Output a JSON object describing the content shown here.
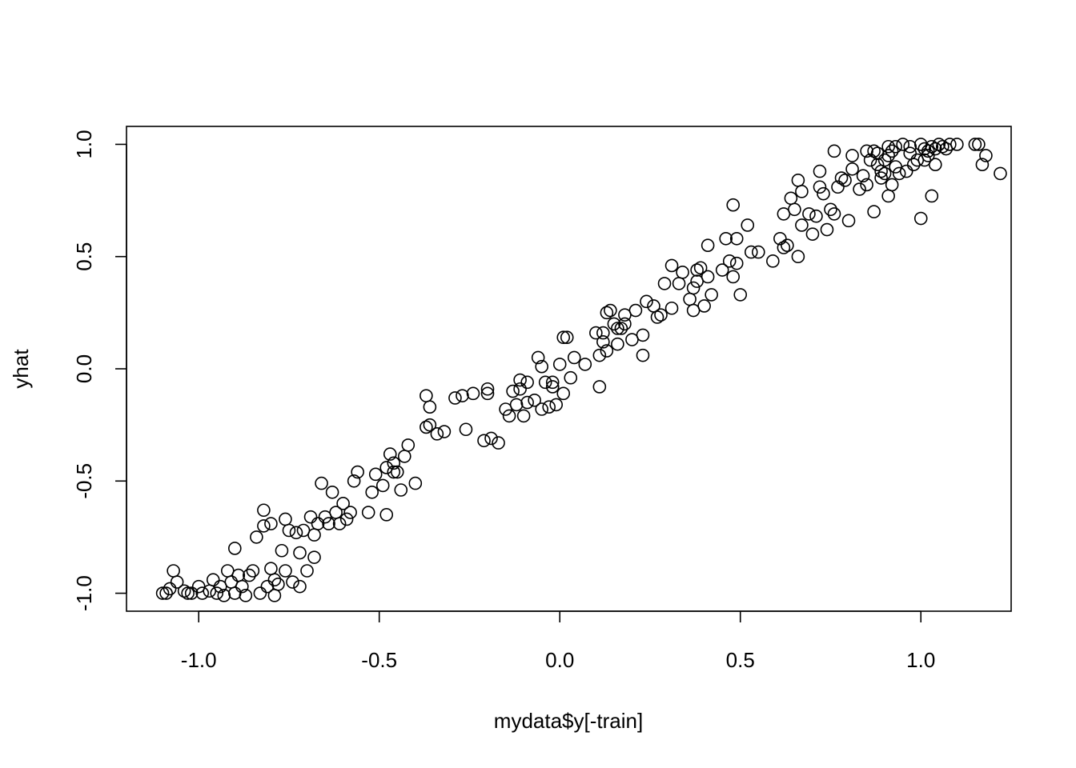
{
  "chart_data": {
    "type": "scatter",
    "title": "",
    "xlabel": "mydata$y[-train]",
    "ylabel": "yhat",
    "xlim": [
      -1.2,
      1.25
    ],
    "ylim": [
      -1.08,
      1.08
    ],
    "grid": false,
    "legend": "none",
    "x_ticks": [
      -1.0,
      -0.5,
      0.0,
      0.5,
      1.0
    ],
    "y_ticks": [
      -1.0,
      -0.5,
      0.0,
      0.5,
      1.0
    ],
    "x_tick_labels": [
      "-1.0",
      "-0.5",
      "0.0",
      "0.5",
      "1.0"
    ],
    "y_tick_labels": [
      "-1.0",
      "-0.5",
      "0.0",
      "0.5",
      "1.0"
    ],
    "points": [
      [
        -1.1,
        -1.0
      ],
      [
        -1.09,
        -1.0
      ],
      [
        -1.08,
        -0.98
      ],
      [
        -1.07,
        -0.9
      ],
      [
        -1.06,
        -0.95
      ],
      [
        -1.04,
        -0.99
      ],
      [
        -1.03,
        -1.0
      ],
      [
        -1.02,
        -1.0
      ],
      [
        -1.0,
        -0.97
      ],
      [
        -0.99,
        -1.0
      ],
      [
        -0.97,
        -0.99
      ],
      [
        -0.96,
        -0.94
      ],
      [
        -0.95,
        -1.0
      ],
      [
        -0.94,
        -0.97
      ],
      [
        -0.93,
        -1.01
      ],
      [
        -0.92,
        -0.9
      ],
      [
        -0.91,
        -0.95
      ],
      [
        -0.9,
        -0.8
      ],
      [
        -0.9,
        -1.0
      ],
      [
        -0.89,
        -0.92
      ],
      [
        -0.88,
        -0.97
      ],
      [
        -0.87,
        -1.01
      ],
      [
        -0.86,
        -0.92
      ],
      [
        -0.85,
        -0.9
      ],
      [
        -0.84,
        -0.75
      ],
      [
        -0.83,
        -1.0
      ],
      [
        -0.82,
        -0.63
      ],
      [
        -0.82,
        -0.7
      ],
      [
        -0.81,
        -0.97
      ],
      [
        -0.8,
        -0.89
      ],
      [
        -0.8,
        -0.69
      ],
      [
        -0.79,
        -0.94
      ],
      [
        -0.79,
        -1.01
      ],
      [
        -0.78,
        -0.96
      ],
      [
        -0.77,
        -0.81
      ],
      [
        -0.76,
        -0.67
      ],
      [
        -0.76,
        -0.9
      ],
      [
        -0.75,
        -0.72
      ],
      [
        -0.74,
        -0.95
      ],
      [
        -0.73,
        -0.73
      ],
      [
        -0.72,
        -0.82
      ],
      [
        -0.72,
        -0.97
      ],
      [
        -0.71,
        -0.72
      ],
      [
        -0.7,
        -0.9
      ],
      [
        -0.69,
        -0.66
      ],
      [
        -0.68,
        -0.84
      ],
      [
        -0.68,
        -0.74
      ],
      [
        -0.67,
        -0.69
      ],
      [
        -0.66,
        -0.51
      ],
      [
        -0.65,
        -0.66
      ],
      [
        -0.64,
        -0.69
      ],
      [
        -0.63,
        -0.55
      ],
      [
        -0.62,
        -0.64
      ],
      [
        -0.61,
        -0.69
      ],
      [
        -0.6,
        -0.6
      ],
      [
        -0.59,
        -0.67
      ],
      [
        -0.58,
        -0.64
      ],
      [
        -0.57,
        -0.5
      ],
      [
        -0.56,
        -0.46
      ],
      [
        -0.53,
        -0.64
      ],
      [
        -0.52,
        -0.55
      ],
      [
        -0.51,
        -0.47
      ],
      [
        -0.49,
        -0.52
      ],
      [
        -0.48,
        -0.44
      ],
      [
        -0.48,
        -0.65
      ],
      [
        -0.47,
        -0.38
      ],
      [
        -0.46,
        -0.42
      ],
      [
        -0.46,
        -0.46
      ],
      [
        -0.45,
        -0.46
      ],
      [
        -0.44,
        -0.54
      ],
      [
        -0.43,
        -0.39
      ],
      [
        -0.42,
        -0.34
      ],
      [
        -0.4,
        -0.51
      ],
      [
        -0.37,
        -0.12
      ],
      [
        -0.37,
        -0.26
      ],
      [
        -0.36,
        -0.17
      ],
      [
        -0.36,
        -0.25
      ],
      [
        -0.34,
        -0.29
      ],
      [
        -0.32,
        -0.28
      ],
      [
        -0.29,
        -0.13
      ],
      [
        -0.27,
        -0.12
      ],
      [
        -0.26,
        -0.27
      ],
      [
        -0.24,
        -0.11
      ],
      [
        -0.21,
        -0.32
      ],
      [
        -0.2,
        -0.11
      ],
      [
        -0.2,
        -0.09
      ],
      [
        -0.19,
        -0.31
      ],
      [
        -0.17,
        -0.33
      ],
      [
        -0.15,
        -0.18
      ],
      [
        -0.14,
        -0.21
      ],
      [
        -0.13,
        -0.1
      ],
      [
        -0.12,
        -0.16
      ],
      [
        -0.11,
        -0.05
      ],
      [
        -0.11,
        -0.09
      ],
      [
        -0.1,
        -0.21
      ],
      [
        -0.09,
        -0.06
      ],
      [
        -0.09,
        -0.15
      ],
      [
        -0.07,
        -0.14
      ],
      [
        -0.06,
        0.05
      ],
      [
        -0.05,
        0.01
      ],
      [
        -0.05,
        -0.18
      ],
      [
        -0.04,
        -0.06
      ],
      [
        -0.03,
        -0.17
      ],
      [
        -0.02,
        -0.06
      ],
      [
        -0.02,
        -0.08
      ],
      [
        -0.01,
        -0.16
      ],
      [
        0.0,
        0.02
      ],
      [
        0.01,
        0.14
      ],
      [
        0.01,
        -0.11
      ],
      [
        0.02,
        0.14
      ],
      [
        0.03,
        -0.04
      ],
      [
        0.04,
        0.05
      ],
      [
        0.07,
        0.02
      ],
      [
        0.1,
        0.16
      ],
      [
        0.11,
        -0.08
      ],
      [
        0.11,
        0.06
      ],
      [
        0.12,
        0.16
      ],
      [
        0.12,
        0.12
      ],
      [
        0.13,
        0.08
      ],
      [
        0.13,
        0.25
      ],
      [
        0.14,
        0.26
      ],
      [
        0.15,
        0.2
      ],
      [
        0.16,
        0.18
      ],
      [
        0.16,
        0.11
      ],
      [
        0.17,
        0.18
      ],
      [
        0.18,
        0.24
      ],
      [
        0.18,
        0.2
      ],
      [
        0.2,
        0.13
      ],
      [
        0.21,
        0.26
      ],
      [
        0.23,
        0.15
      ],
      [
        0.23,
        0.06
      ],
      [
        0.24,
        0.3
      ],
      [
        0.26,
        0.28
      ],
      [
        0.27,
        0.23
      ],
      [
        0.28,
        0.24
      ],
      [
        0.29,
        0.38
      ],
      [
        0.31,
        0.46
      ],
      [
        0.31,
        0.27
      ],
      [
        0.33,
        0.38
      ],
      [
        0.34,
        0.43
      ],
      [
        0.36,
        0.31
      ],
      [
        0.37,
        0.36
      ],
      [
        0.37,
        0.26
      ],
      [
        0.38,
        0.44
      ],
      [
        0.38,
        0.39
      ],
      [
        0.39,
        0.45
      ],
      [
        0.4,
        0.28
      ],
      [
        0.41,
        0.41
      ],
      [
        0.41,
        0.55
      ],
      [
        0.42,
        0.33
      ],
      [
        0.45,
        0.44
      ],
      [
        0.46,
        0.58
      ],
      [
        0.47,
        0.48
      ],
      [
        0.48,
        0.41
      ],
      [
        0.48,
        0.73
      ],
      [
        0.49,
        0.58
      ],
      [
        0.49,
        0.47
      ],
      [
        0.5,
        0.33
      ],
      [
        0.52,
        0.64
      ],
      [
        0.53,
        0.52
      ],
      [
        0.55,
        0.52
      ],
      [
        0.59,
        0.48
      ],
      [
        0.61,
        0.58
      ],
      [
        0.62,
        0.69
      ],
      [
        0.62,
        0.54
      ],
      [
        0.63,
        0.55
      ],
      [
        0.64,
        0.76
      ],
      [
        0.65,
        0.71
      ],
      [
        0.66,
        0.5
      ],
      [
        0.66,
        0.84
      ],
      [
        0.67,
        0.79
      ],
      [
        0.67,
        0.64
      ],
      [
        0.69,
        0.69
      ],
      [
        0.7,
        0.6
      ],
      [
        0.71,
        0.68
      ],
      [
        0.72,
        0.88
      ],
      [
        0.72,
        0.81
      ],
      [
        0.73,
        0.78
      ],
      [
        0.74,
        0.62
      ],
      [
        0.75,
        0.71
      ],
      [
        0.76,
        0.97
      ],
      [
        0.76,
        0.69
      ],
      [
        0.77,
        0.81
      ],
      [
        0.78,
        0.85
      ],
      [
        0.79,
        0.84
      ],
      [
        0.8,
        0.66
      ],
      [
        0.81,
        0.95
      ],
      [
        0.81,
        0.89
      ],
      [
        0.83,
        0.8
      ],
      [
        0.84,
        0.86
      ],
      [
        0.85,
        0.97
      ],
      [
        0.85,
        0.82
      ],
      [
        0.86,
        0.93
      ],
      [
        0.87,
        0.97
      ],
      [
        0.87,
        0.7
      ],
      [
        0.88,
        0.96
      ],
      [
        0.88,
        0.91
      ],
      [
        0.89,
        0.85
      ],
      [
        0.89,
        0.88
      ],
      [
        0.9,
        0.93
      ],
      [
        0.9,
        0.87
      ],
      [
        0.91,
        0.99
      ],
      [
        0.91,
        0.77
      ],
      [
        0.91,
        0.95
      ],
      [
        0.92,
        0.82
      ],
      [
        0.92,
        0.97
      ],
      [
        0.93,
        0.99
      ],
      [
        0.93,
        0.9
      ],
      [
        0.94,
        0.87
      ],
      [
        0.95,
        1.0
      ],
      [
        0.96,
        0.88
      ],
      [
        0.97,
        0.96
      ],
      [
        0.97,
        0.99
      ],
      [
        0.98,
        0.91
      ],
      [
        0.99,
        0.93
      ],
      [
        1.0,
        1.0
      ],
      [
        1.0,
        0.67
      ],
      [
        1.01,
        0.98
      ],
      [
        1.01,
        0.93
      ],
      [
        1.02,
        0.95
      ],
      [
        1.02,
        0.97
      ],
      [
        1.03,
        0.77
      ],
      [
        1.03,
        0.99
      ],
      [
        1.04,
        0.91
      ],
      [
        1.04,
        0.98
      ],
      [
        1.05,
        1.0
      ],
      [
        1.06,
        0.99
      ],
      [
        1.07,
        0.98
      ],
      [
        1.08,
        1.0
      ],
      [
        1.1,
        1.0
      ],
      [
        1.15,
        1.0
      ],
      [
        1.16,
        1.0
      ],
      [
        1.17,
        0.91
      ],
      [
        1.18,
        0.95
      ],
      [
        1.22,
        0.87
      ]
    ]
  }
}
